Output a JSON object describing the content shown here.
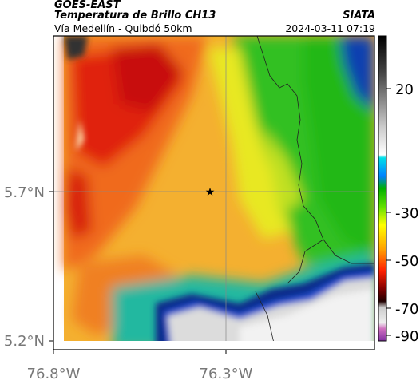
{
  "header": {
    "satellite": "GOES-EAST",
    "product": "Temperatura de Brillo CH13",
    "region": "Vía Medellín - Quibdó 50km",
    "organization": "SIATA",
    "timestamp": "2024-03-11 07:19"
  },
  "map": {
    "y_ticks": [
      "5.7°N",
      "5.2°N"
    ],
    "x_ticks": [
      "76.8°W",
      "76.3°W"
    ],
    "marker": "star-marker"
  },
  "colorbar": {
    "ticks": [
      "20",
      "-30",
      "-50",
      "-70",
      "-90"
    ],
    "colors": [
      "#111111",
      "#ffffff",
      "#00c8d8",
      "#00c000",
      "#ffff00",
      "#ff8000",
      "#e00000",
      "#400000",
      "#b040b0"
    ]
  }
}
